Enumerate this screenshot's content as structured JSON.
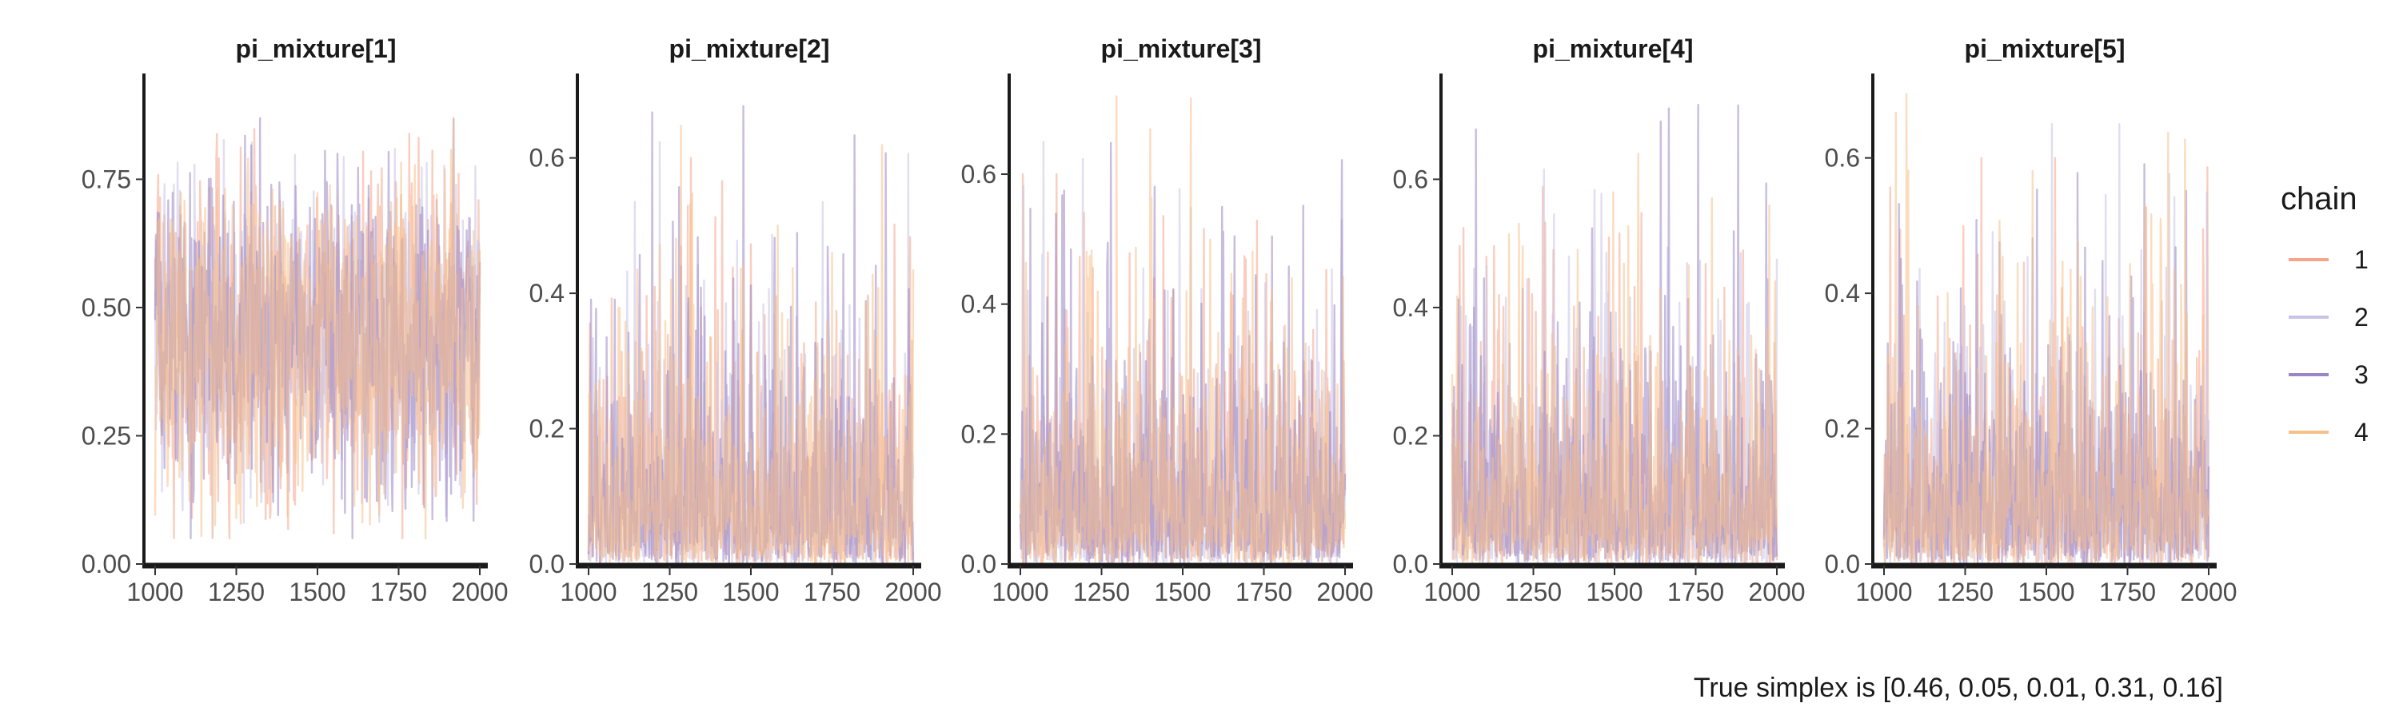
{
  "caption": "True simplex is [0.46, 0.05, 0.01, 0.31, 0.16]",
  "legend": {
    "title": "chain",
    "entries": [
      {
        "label": "1",
        "color": "#f4a58a"
      },
      {
        "label": "2",
        "color": "#c9c3e6"
      },
      {
        "label": "3",
        "color": "#9b86c4"
      },
      {
        "label": "4",
        "color": "#f7c08a"
      }
    ]
  },
  "chart_data": [
    {
      "type": "line",
      "title": "pi_mixture[1]",
      "xlim": [
        1000,
        2000
      ],
      "xticks": [
        1000,
        1250,
        1500,
        1750,
        2000
      ],
      "xtick_labels": [
        "1000",
        "1250",
        "1500",
        "1750",
        "2000"
      ],
      "ylim": [
        0,
        0.95
      ],
      "yticks": [
        0,
        0.25,
        0.5,
        0.75
      ],
      "ytick_labels": [
        "0.00",
        "0.25",
        "0.50",
        "0.75"
      ],
      "grid": false,
      "series_summary": {
        "center": 0.44,
        "min": 0.03,
        "max": 0.92
      },
      "series": [
        {
          "name": "1",
          "x_range": [
            1000,
            2000
          ],
          "y_range": [
            0.05,
            0.9
          ],
          "center": 0.44
        },
        {
          "name": "2",
          "x_range": [
            1000,
            2000
          ],
          "y_range": [
            0.05,
            0.88
          ],
          "center": 0.44
        },
        {
          "name": "3",
          "x_range": [
            1000,
            2000
          ],
          "y_range": [
            0.05,
            0.92
          ],
          "center": 0.44
        },
        {
          "name": "4",
          "x_range": [
            1000,
            2000
          ],
          "y_range": [
            0.03,
            0.9
          ],
          "center": 0.44
        }
      ]
    },
    {
      "type": "line",
      "title": "pi_mixture[2]",
      "xlim": [
        1000,
        2000
      ],
      "xticks": [
        1000,
        1250,
        1500,
        1750,
        2000
      ],
      "xtick_labels": [
        "1000",
        "1250",
        "1500",
        "1750",
        "2000"
      ],
      "ylim": [
        0,
        0.72
      ],
      "yticks": [
        0,
        0.2,
        0.4,
        0.6
      ],
      "ytick_labels": [
        "0.0",
        "0.2",
        "0.4",
        "0.6"
      ],
      "grid": false,
      "series_summary": {
        "center": 0.12,
        "min": 0.0,
        "max": 0.69
      },
      "series": [
        {
          "name": "1",
          "x_range": [
            1000,
            2000
          ],
          "y_range": [
            0.0,
            0.6
          ],
          "center": 0.12
        },
        {
          "name": "2",
          "x_range": [
            1000,
            2000
          ],
          "y_range": [
            0.0,
            0.65
          ],
          "center": 0.12
        },
        {
          "name": "3",
          "x_range": [
            1000,
            2000
          ],
          "y_range": [
            0.0,
            0.69
          ],
          "center": 0.12
        },
        {
          "name": "4",
          "x_range": [
            1000,
            2000
          ],
          "y_range": [
            0.0,
            0.68
          ],
          "center": 0.12
        }
      ]
    },
    {
      "type": "line",
      "title": "pi_mixture[3]",
      "xlim": [
        1000,
        2000
      ],
      "xticks": [
        1000,
        1250,
        1500,
        1750,
        2000
      ],
      "xtick_labels": [
        "1000",
        "1250",
        "1500",
        "1750",
        "2000"
      ],
      "ylim": [
        0,
        0.75
      ],
      "yticks": [
        0,
        0.2,
        0.4,
        0.6
      ],
      "ytick_labels": [
        "0.0",
        "0.2",
        "0.4",
        "0.6"
      ],
      "grid": false,
      "series_summary": {
        "center": 0.12,
        "min": 0.0,
        "max": 0.72
      },
      "series": [
        {
          "name": "1",
          "x_range": [
            1000,
            2000
          ],
          "y_range": [
            0.0,
            0.6
          ],
          "center": 0.12
        },
        {
          "name": "2",
          "x_range": [
            1000,
            2000
          ],
          "y_range": [
            0.0,
            0.65
          ],
          "center": 0.12
        },
        {
          "name": "3",
          "x_range": [
            1000,
            2000
          ],
          "y_range": [
            0.0,
            0.69
          ],
          "center": 0.12
        },
        {
          "name": "4",
          "x_range": [
            1000,
            2000
          ],
          "y_range": [
            0.0,
            0.72
          ],
          "center": 0.12
        }
      ]
    },
    {
      "type": "line",
      "title": "pi_mixture[4]",
      "xlim": [
        1000,
        2000
      ],
      "xticks": [
        1000,
        1250,
        1500,
        1750,
        2000
      ],
      "xtick_labels": [
        "1000",
        "1250",
        "1500",
        "1750",
        "2000"
      ],
      "ylim": [
        0,
        0.76
      ],
      "yticks": [
        0,
        0.2,
        0.4,
        0.6
      ],
      "ytick_labels": [
        "0.0",
        "0.2",
        "0.4",
        "0.6"
      ],
      "grid": false,
      "series_summary": {
        "center": 0.12,
        "min": 0.0,
        "max": 0.72
      },
      "series": [
        {
          "name": "1",
          "x_range": [
            1000,
            2000
          ],
          "y_range": [
            0.0,
            0.62
          ],
          "center": 0.12
        },
        {
          "name": "2",
          "x_range": [
            1000,
            2000
          ],
          "y_range": [
            0.0,
            0.63
          ],
          "center": 0.12
        },
        {
          "name": "3",
          "x_range": [
            1000,
            2000
          ],
          "y_range": [
            0.0,
            0.72
          ],
          "center": 0.12
        },
        {
          "name": "4",
          "x_range": [
            1000,
            2000
          ],
          "y_range": [
            0.0,
            0.64
          ],
          "center": 0.12
        }
      ]
    },
    {
      "type": "line",
      "title": "pi_mixture[5]",
      "xlim": [
        1000,
        2000
      ],
      "xticks": [
        1000,
        1250,
        1500,
        1750,
        2000
      ],
      "xtick_labels": [
        "1000",
        "1250",
        "1500",
        "1750",
        "2000"
      ],
      "ylim": [
        0,
        0.72
      ],
      "yticks": [
        0,
        0.2,
        0.4,
        0.6
      ],
      "ytick_labels": [
        "0.0",
        "0.2",
        "0.4",
        "0.6"
      ],
      "grid": false,
      "series_summary": {
        "center": 0.12,
        "min": 0.0,
        "max": 0.7
      },
      "series": [
        {
          "name": "1",
          "x_range": [
            1000,
            2000
          ],
          "y_range": [
            0.0,
            0.6
          ],
          "center": 0.12
        },
        {
          "name": "2",
          "x_range": [
            1000,
            2000
          ],
          "y_range": [
            0.0,
            0.65
          ],
          "center": 0.12
        },
        {
          "name": "3",
          "x_range": [
            1000,
            2000
          ],
          "y_range": [
            0.0,
            0.64
          ],
          "center": 0.12
        },
        {
          "name": "4",
          "x_range": [
            1000,
            2000
          ],
          "y_range": [
            0.0,
            0.7
          ],
          "center": 0.12
        }
      ]
    }
  ]
}
